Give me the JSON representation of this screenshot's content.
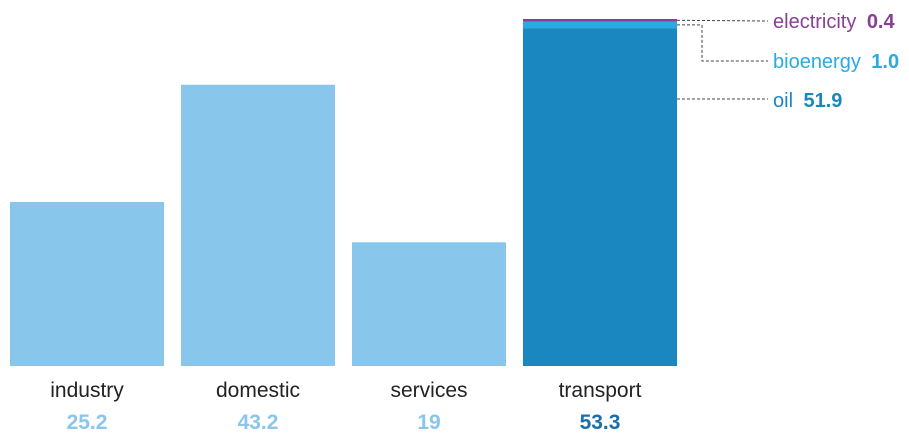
{
  "chart_data": {
    "type": "bar",
    "categories": [
      "industry",
      "domestic",
      "services",
      "transport"
    ],
    "values": [
      "25.2",
      "43.2",
      "19",
      "53.3"
    ],
    "ylim": [
      0,
      53.3
    ],
    "grid": false,
    "stacked_category": "transport",
    "stack": [
      {
        "name": "oil",
        "value": "51.9",
        "color": "#1b87c0"
      },
      {
        "name": "bioenergy",
        "value": "1.0",
        "color": "#29abe2"
      },
      {
        "name": "electricity",
        "value": "0.4",
        "color": "#8a3f96"
      }
    ],
    "colors": {
      "bar": "#89c6ec",
      "bar_value": "#89c6ec",
      "transport_value": "#1b6fa8",
      "oil_label": "#1b87c0",
      "bioenergy_label": "#29abe2",
      "electricity_label": "#8a3f96"
    }
  }
}
